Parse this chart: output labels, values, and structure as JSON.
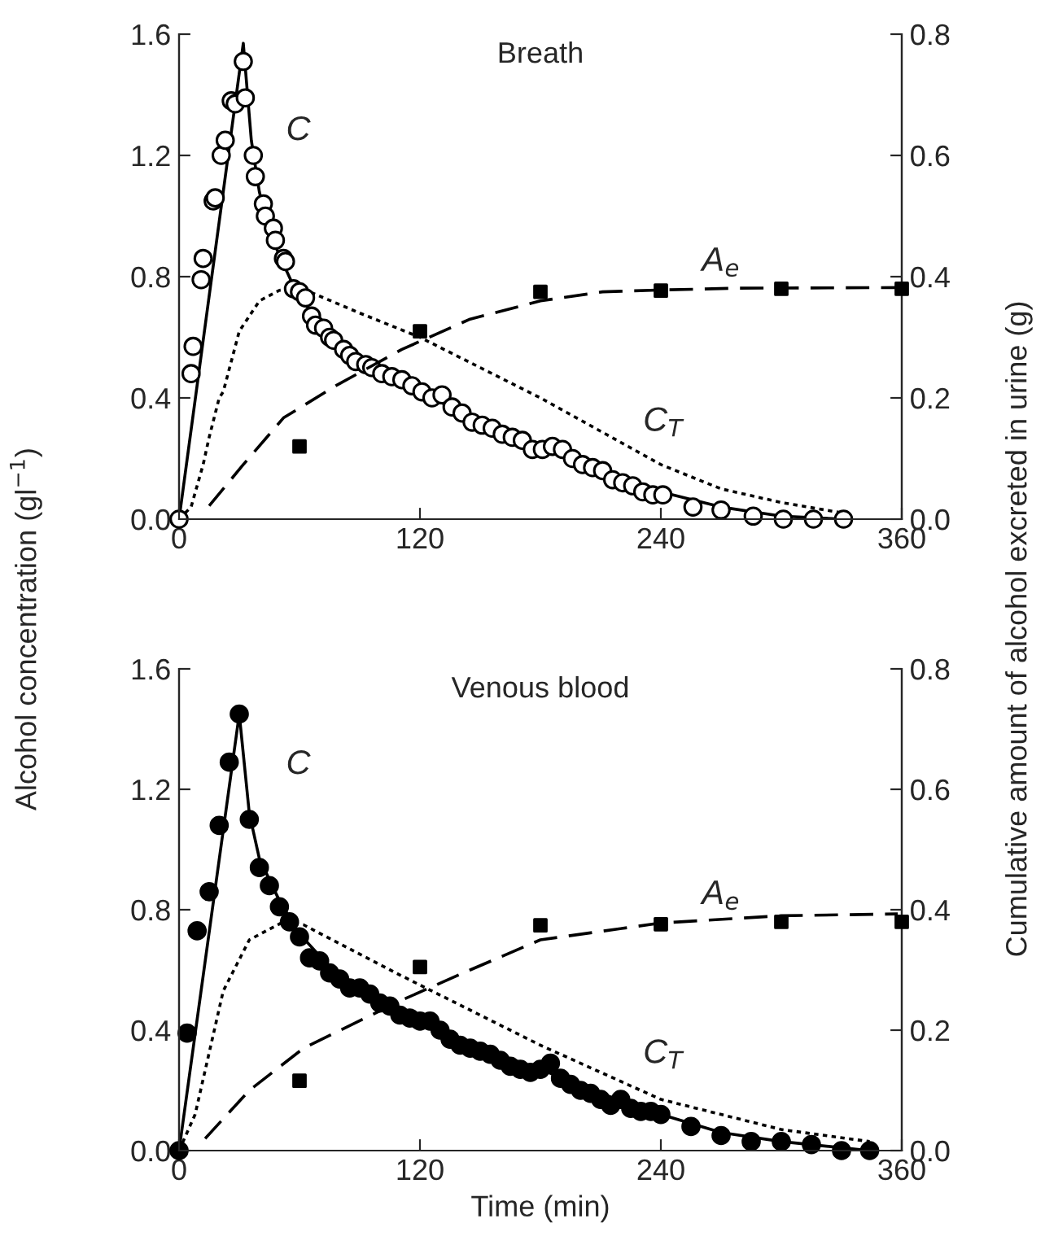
{
  "chart_data": [
    {
      "type": "line",
      "title": "Breath",
      "ylabel": "Alcohol concentration (gl$^{−1}$)",
      "y2label": "Cumulative amount of alcohol excreted in urine (g)",
      "xlim": [
        0,
        360
      ],
      "xticks": [
        0,
        120,
        240,
        360
      ],
      "ylim": [
        0,
        1.6
      ],
      "yticks": [
        {
          "value": 0,
          "label": "0.0"
        },
        0.4,
        0.8,
        1.2,
        1.6
      ],
      "y2lim": [
        0,
        0.8
      ],
      "y2ticks": [
        {
          "value": 0,
          "label": "0.0"
        },
        0.2,
        0.4,
        0.6,
        0.8
      ],
      "annotations": [
        "C",
        "A$_{e}$",
        "C$_{T}$"
      ],
      "series": [
        {
          "color": "#000000",
          "line_style": "solid",
          "marker": "none",
          "x": [
            0,
            32,
            36,
            40,
            45,
            50,
            57,
            65,
            80,
            100,
            120,
            150,
            180,
            210,
            240,
            270,
            300,
            331
          ],
          "values": [
            0,
            1.57,
            1.25,
            1.08,
            0.95,
            0.87,
            0.77,
            0.69,
            0.58,
            0.49,
            0.42,
            0.32,
            0.24,
            0.17,
            0.09,
            0.04,
            0.01,
            0
          ]
        },
        {
          "color": "#000000",
          "line_style": "dotted",
          "marker": "none",
          "x": [
            0,
            6,
            12,
            15,
            20,
            22,
            30,
            40,
            50,
            57,
            65,
            90,
            120,
            150,
            180,
            210,
            240,
            270,
            300,
            331
          ],
          "values": [
            0,
            0.04,
            0.18,
            0.27,
            0.4,
            0.42,
            0.62,
            0.72,
            0.755,
            0.76,
            0.75,
            0.68,
            0.6,
            0.5,
            0.4,
            0.29,
            0.18,
            0.1,
            0.055,
            0.02
          ]
        },
        {
          "axis": "y2",
          "color": "#000000",
          "line_style": "dashed",
          "marker": "none",
          "x": [
            15,
            32,
            52,
            78,
            111,
            145,
            180,
            211,
            240,
            278,
            360
          ],
          "values": [
            0.022,
            0.09,
            0.167,
            0.22,
            0.28,
            0.33,
            0.36,
            0.375,
            0.378,
            0.381,
            0.382
          ]
        },
        {
          "type": "scatter",
          "color": "#ffffff",
          "marker": "circle",
          "x": [
            0,
            6,
            7,
            11,
            12,
            17,
            18,
            21,
            23,
            26,
            28,
            32,
            33,
            37,
            38,
            42,
            43,
            47,
            48,
            52,
            53,
            57,
            60,
            63,
            66,
            68,
            72,
            75,
            77,
            82,
            85,
            88,
            93,
            96,
            101,
            106,
            111,
            116,
            121,
            126,
            131,
            136,
            141,
            146,
            151,
            156,
            161,
            166,
            171,
            176,
            181,
            186,
            191,
            196,
            201,
            206,
            211,
            216,
            221,
            226,
            231,
            236,
            241,
            256,
            270,
            286,
            301,
            316,
            331
          ],
          "values": [
            0,
            0.48,
            0.57,
            0.79,
            0.86,
            1.05,
            1.06,
            1.2,
            1.25,
            1.38,
            1.37,
            1.51,
            1.39,
            1.2,
            1.13,
            1.04,
            1.0,
            0.96,
            0.92,
            0.86,
            0.85,
            0.76,
            0.75,
            0.73,
            0.67,
            0.64,
            0.63,
            0.6,
            0.59,
            0.56,
            0.54,
            0.52,
            0.51,
            0.5,
            0.48,
            0.47,
            0.46,
            0.44,
            0.42,
            0.4,
            0.41,
            0.37,
            0.35,
            0.32,
            0.31,
            0.3,
            0.28,
            0.27,
            0.26,
            0.23,
            0.23,
            0.24,
            0.23,
            0.2,
            0.18,
            0.17,
            0.16,
            0.13,
            0.12,
            0.11,
            0.09,
            0.08,
            0.08,
            0.04,
            0.03,
            0.01,
            0,
            0,
            0
          ]
        },
        {
          "type": "scatter",
          "axis": "y2",
          "color": "#000000",
          "marker": "square",
          "x": [
            60,
            120,
            180,
            240,
            300,
            360
          ],
          "values": [
            0.12,
            0.31,
            0.375,
            0.377,
            0.38,
            0.38
          ]
        }
      ]
    },
    {
      "type": "line",
      "title": "Venous blood",
      "xlabel": "Time (min)",
      "xlim": [
        0,
        360
      ],
      "xticks": [
        0,
        120,
        240,
        360
      ],
      "ylim": [
        0,
        1.6
      ],
      "yticks": [
        {
          "value": 0,
          "label": "0.0"
        },
        0.4,
        0.8,
        1.2,
        1.6
      ],
      "y2lim": [
        0,
        0.8
      ],
      "y2ticks": [
        {
          "value": 0,
          "label": "0.0"
        },
        0.2,
        0.4,
        0.6,
        0.8
      ],
      "annotations": [
        "C",
        "A$_{e}$",
        "C$_{T}$"
      ],
      "series": [
        {
          "color": "#000000",
          "line_style": "solid",
          "marker": "none",
          "x": [
            0,
            30,
            35,
            40,
            50,
            60,
            75,
            90,
            120,
            150,
            180,
            210,
            240,
            270,
            300,
            344
          ],
          "values": [
            0,
            1.45,
            1.12,
            0.97,
            0.83,
            0.72,
            0.61,
            0.54,
            0.44,
            0.34,
            0.27,
            0.19,
            0.12,
            0.06,
            0.03,
            0
          ]
        },
        {
          "color": "#000000",
          "line_style": "dotted",
          "marker": "none",
          "x": [
            0,
            8,
            22,
            35,
            52,
            62,
            111,
            180,
            240,
            300,
            344
          ],
          "values": [
            0,
            0.12,
            0.53,
            0.7,
            0.76,
            0.75,
            0.58,
            0.35,
            0.17,
            0.07,
            0.03
          ]
        },
        {
          "axis": "y2",
          "color": "#000000",
          "line_style": "dashed",
          "marker": "none",
          "x": [
            13,
            35,
            62,
            111,
            145,
            180,
            240,
            300,
            358
          ],
          "values": [
            0.02,
            0.1,
            0.17,
            0.25,
            0.3,
            0.35,
            0.378,
            0.39,
            0.393
          ]
        },
        {
          "type": "scatter",
          "color": "#000000",
          "marker": "circle",
          "x": [
            0,
            4,
            9,
            15,
            20,
            25,
            30,
            35,
            40,
            45,
            50,
            55,
            60,
            65,
            70,
            75,
            80,
            85,
            90,
            95,
            100,
            105,
            110,
            115,
            120,
            125,
            130,
            135,
            140,
            145,
            150,
            155,
            160,
            165,
            170,
            175,
            180,
            185,
            190,
            195,
            200,
            205,
            210,
            215,
            220,
            225,
            230,
            235,
            240,
            255,
            270,
            285,
            300,
            315,
            330,
            344
          ],
          "values": [
            0,
            0.39,
            0.73,
            0.86,
            1.08,
            1.29,
            1.45,
            1.1,
            0.94,
            0.88,
            0.81,
            0.76,
            0.71,
            0.64,
            0.63,
            0.59,
            0.57,
            0.54,
            0.54,
            0.52,
            0.49,
            0.48,
            0.45,
            0.44,
            0.43,
            0.43,
            0.4,
            0.37,
            0.35,
            0.34,
            0.33,
            0.32,
            0.3,
            0.28,
            0.27,
            0.26,
            0.27,
            0.29,
            0.24,
            0.22,
            0.2,
            0.19,
            0.17,
            0.15,
            0.17,
            0.14,
            0.13,
            0.13,
            0.12,
            0.08,
            0.05,
            0.03,
            0.03,
            0.02,
            0,
            0
          ]
        },
        {
          "type": "scatter",
          "axis": "y2",
          "color": "#000000",
          "marker": "square",
          "x": [
            60,
            120,
            180,
            240,
            300,
            360
          ],
          "values": [
            0.116,
            0.305,
            0.374,
            0.376,
            0.38,
            0.38
          ]
        }
      ]
    }
  ]
}
